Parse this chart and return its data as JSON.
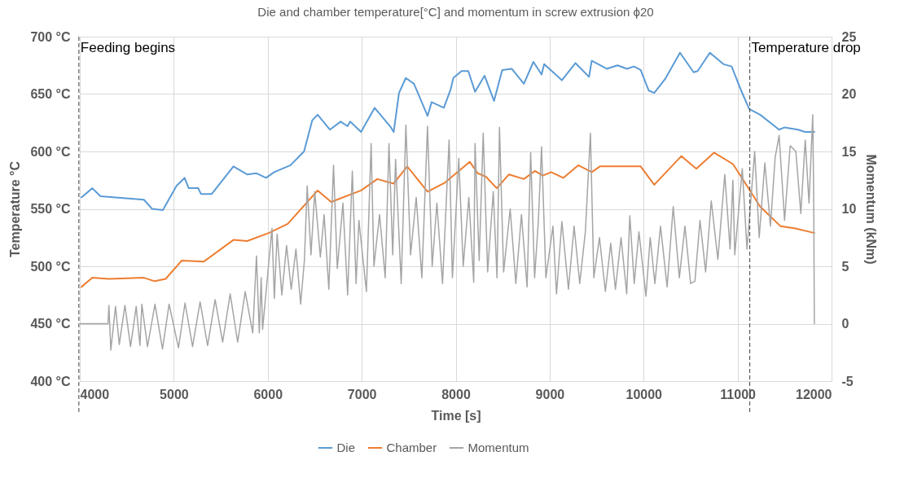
{
  "chart_data": {
    "type": "line",
    "title": "Die and chamber temperature[°C] and momentum in screw extrusion ϕ20",
    "xlabel": "Time [s]",
    "ylabel": "Temperature °C",
    "y2label": "Momentum (kNm)",
    "xlim": [
      4000,
      12000
    ],
    "xticks": [
      4000,
      5000,
      6000,
      7000,
      8000,
      9000,
      10000,
      11000,
      12000
    ],
    "ylim": [
      400,
      700
    ],
    "yticks": [
      {
        "value": 400,
        "label": "400 °C"
      },
      {
        "value": 450,
        "label": "450 °C"
      },
      {
        "value": 500,
        "label": "500 °C"
      },
      {
        "value": 550,
        "label": "550 °C"
      },
      {
        "value": 600,
        "label": "600 °C"
      },
      {
        "value": 650,
        "label": "650 °C"
      },
      {
        "value": 700,
        "label": "700 °C"
      }
    ],
    "y2lim": [
      -5,
      25
    ],
    "y2ticks": [
      -5,
      0,
      5,
      10,
      15,
      20,
      25
    ],
    "grid": true,
    "legend": "bottom",
    "ref_lines": [
      {
        "axis": "x",
        "value": 3990,
        "label": "Feeding begins",
        "color": "#404040",
        "line_style": "dashed"
      },
      {
        "axis": "x",
        "value": 11130,
        "label": "Temperature drop",
        "color": "#404040",
        "line_style": "dashed"
      }
    ],
    "series": [
      {
        "name": "Die",
        "color": "#5b9bd5",
        "x": [
          4017,
          4133,
          4220,
          4682,
          4769,
          4884,
          5029,
          5115,
          5159,
          5260,
          5289,
          5404,
          5635,
          5780,
          5881,
          5982,
          6069,
          6242,
          6386,
          6473,
          6531,
          6661,
          6776,
          6849,
          6877,
          6993,
          7137,
          7311,
          7340,
          7397,
          7469,
          7556,
          7701,
          7744,
          7874,
          7946,
          7975,
          8062,
          8134,
          8206,
          8307,
          8408,
          8495,
          8596,
          8726,
          8827,
          8914,
          8942,
          9130,
          9275,
          9419,
          9448,
          9607,
          9723,
          9824,
          9896,
          9968,
          10055,
          10113,
          10228,
          10387,
          10532,
          10575,
          10705,
          10850,
          10937,
          11038,
          11124,
          11240,
          11442,
          11500,
          11644,
          11717,
          11817
        ],
        "values": [
          560,
          568,
          561,
          558,
          550,
          549,
          570,
          577,
          568,
          568,
          563,
          563,
          587,
          580,
          581,
          577,
          582,
          588,
          600,
          627,
          632,
          619,
          626,
          622,
          626,
          617,
          638,
          621,
          617,
          651,
          664,
          659,
          631,
          643,
          638,
          654,
          664,
          670,
          670,
          652,
          666,
          644,
          671,
          672,
          659,
          678,
          667,
          676,
          662,
          677,
          665,
          679,
          672,
          675,
          672,
          674,
          671,
          653,
          651,
          663,
          686,
          669,
          670,
          686,
          676,
          674,
          653,
          637,
          632,
          619,
          621,
          619,
          617,
          617
        ]
      },
      {
        "name": "Chamber",
        "color": "#ed7d31",
        "x": [
          4017,
          4133,
          4306,
          4682,
          4797,
          4913,
          5086,
          5317,
          5635,
          5780,
          6011,
          6213,
          6531,
          6675,
          6993,
          7166,
          7340,
          7484,
          7701,
          7889,
          8149,
          8235,
          8322,
          8437,
          8567,
          8726,
          8842,
          8928,
          9015,
          9145,
          9304,
          9448,
          9535,
          9968,
          10113,
          10402,
          10561,
          10749,
          10951,
          11038,
          11240,
          11456,
          11615,
          11817
        ],
        "values": [
          482,
          490,
          489,
          490,
          487,
          489,
          505,
          504,
          523,
          522,
          529,
          537,
          566,
          556,
          566,
          576,
          572,
          587,
          565,
          573,
          591,
          581,
          578,
          568,
          580,
          576,
          583,
          579,
          582,
          577,
          588,
          582,
          587,
          587,
          571,
          596,
          585,
          599,
          589,
          578,
          552,
          535,
          533,
          529
        ]
      },
      {
        "name": "Momentum",
        "color": "#a5a5a5",
        "axis": "y2",
        "x": [
          4000,
          4300,
          4310,
          4330,
          4380,
          4420,
          4480,
          4540,
          4600,
          4640,
          4660,
          4720,
          4800,
          4880,
          4950,
          5050,
          5120,
          5200,
          5280,
          5360,
          5440,
          5520,
          5600,
          5680,
          5760,
          5840,
          5880,
          5910,
          5930,
          5945,
          6045,
          6070,
          6100,
          6150,
          6200,
          6250,
          6300,
          6350,
          6390,
          6420,
          6460,
          6500,
          6560,
          6600,
          6650,
          6700,
          6740,
          6800,
          6850,
          6900,
          6940,
          6970,
          7050,
          7100,
          7130,
          7190,
          7250,
          7290,
          7330,
          7360,
          7420,
          7470,
          7520,
          7580,
          7640,
          7700,
          7750,
          7800,
          7860,
          7930,
          7965,
          8033,
          8080,
          8140,
          8192,
          8206,
          8250,
          8293,
          8340,
          8400,
          8440,
          8466,
          8510,
          8580,
          8640,
          8700,
          8760,
          8798,
          8840,
          8880,
          8914,
          8960,
          9035,
          9073,
          9130,
          9200,
          9260,
          9320,
          9380,
          9434,
          9470,
          9530,
          9593,
          9650,
          9700,
          9760,
          9820,
          9853,
          9900,
          9950,
          10025,
          10070,
          10120,
          10180,
          10250,
          10315,
          10380,
          10440,
          10500,
          10546,
          10600,
          10660,
          10720,
          10790,
          10864,
          10920,
          10950,
          10970,
          11050,
          11100,
          11182,
          11230,
          11290,
          11350,
          11400,
          11442,
          11500,
          11560,
          11620,
          11673,
          11720,
          11760,
          11800,
          11810,
          11817
        ],
        "values": [
          0,
          0,
          1.6,
          -2.3,
          1.5,
          -1.8,
          1.6,
          -2,
          1.5,
          -1.9,
          1.7,
          -2,
          1.7,
          -2.2,
          1.7,
          -2.1,
          1.8,
          -2,
          1.9,
          -1.9,
          2.1,
          -1.6,
          2.6,
          -1.6,
          2.8,
          -0.8,
          5.9,
          -0.8,
          4,
          -0.5,
          8.3,
          2.2,
          7.8,
          2.5,
          6.8,
          3,
          6.5,
          1.7,
          5.5,
          12,
          6,
          11.5,
          5.8,
          9.5,
          3,
          13.8,
          4.8,
          10.5,
          2.5,
          13.3,
          3.5,
          9,
          2.8,
          15.7,
          5,
          9.5,
          4,
          15.7,
          6,
          14.3,
          3.5,
          17.3,
          6,
          11,
          4,
          17.2,
          5,
          10.5,
          3.5,
          16,
          4,
          14.4,
          5,
          11,
          3.6,
          15.7,
          5.5,
          16.6,
          4.5,
          11.5,
          4,
          17.1,
          4.5,
          10,
          3.5,
          9.5,
          3.2,
          14.9,
          4,
          9,
          15.4,
          4,
          8.5,
          2.6,
          8.9,
          3,
          8.5,
          3.5,
          8,
          16.6,
          4,
          7.5,
          2.8,
          7,
          3,
          7.5,
          2.6,
          9.4,
          3.5,
          8,
          2.4,
          7.5,
          3.5,
          8.5,
          3.2,
          10.2,
          4,
          8.5,
          3.5,
          3.7,
          9,
          4.5,
          10.7,
          5.6,
          13,
          6.5,
          12.5,
          6,
          13.5,
          6.5,
          15,
          7.5,
          14,
          8.5,
          14.5,
          16.4,
          9,
          15.5,
          15,
          9.6,
          16,
          10.5,
          18.2,
          11,
          0
        ]
      }
    ]
  }
}
